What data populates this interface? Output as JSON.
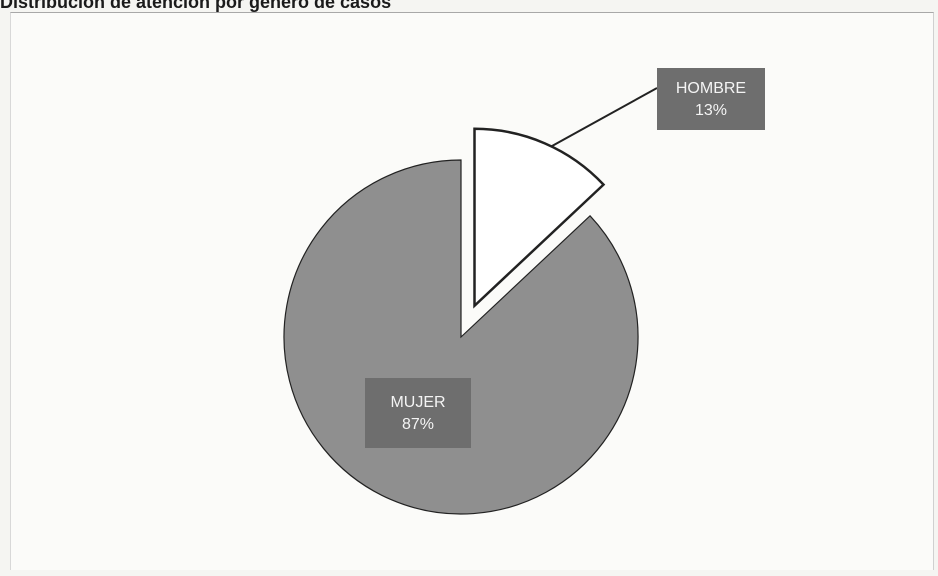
{
  "title": "Distribución de atención por género de casos",
  "chart_data": {
    "type": "pie",
    "title": "Distribución de atención por género de casos",
    "slices": [
      {
        "label": "HOMBRE",
        "value": 13,
        "display": "13%",
        "color": "#ffffff",
        "exploded": true
      },
      {
        "label": "MUJER",
        "value": 87,
        "display": "87%",
        "color": "#8f8f8f",
        "exploded": false
      }
    ],
    "label_box_color": "#6e6e6e",
    "legend": "none"
  }
}
